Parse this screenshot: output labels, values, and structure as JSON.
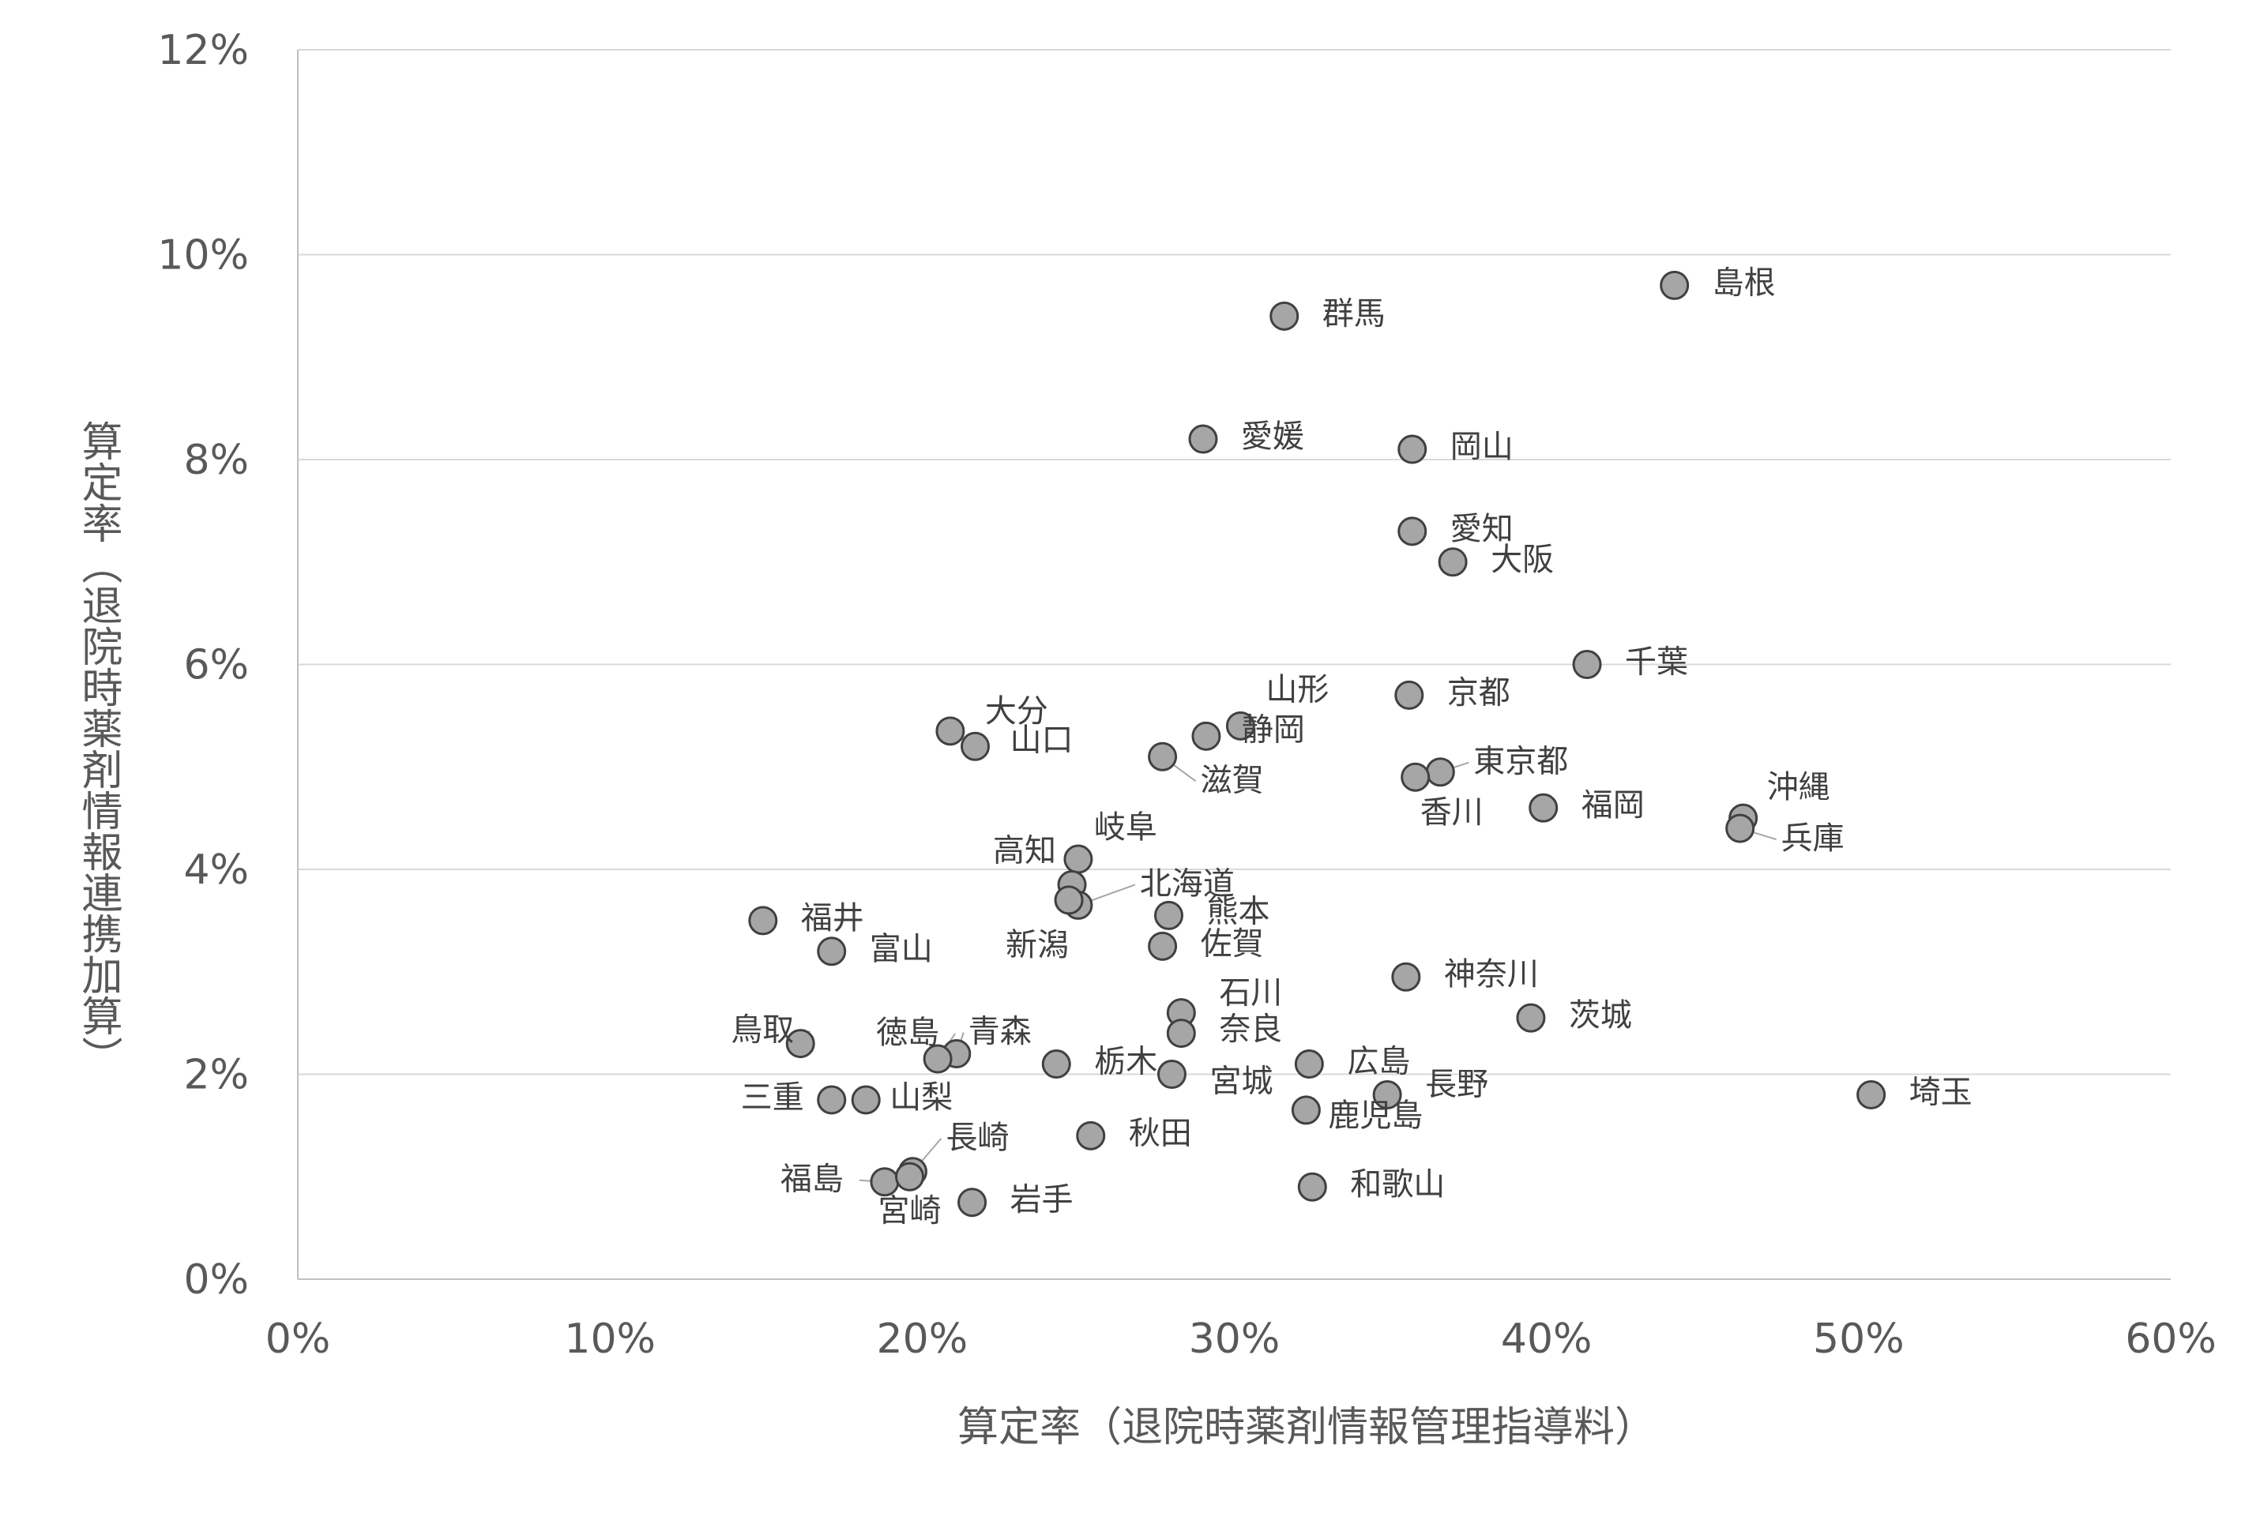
{
  "chart_data": {
    "type": "scatter",
    "xlabel": "算定率（退院時薬剤情報管理指導料）",
    "ylabel": "算定率（退院時薬剤情報連携加算）",
    "xlim": [
      0,
      60
    ],
    "ylim": [
      0,
      12
    ],
    "x_ticks": [
      "0%",
      "10%",
      "20%",
      "30%",
      "40%",
      "50%",
      "60%"
    ],
    "y_ticks": [
      "0%",
      "2%",
      "4%",
      "6%",
      "8%",
      "10%",
      "12%"
    ],
    "grid": "horizontal",
    "marker_color": "#a6a6a6",
    "points": [
      {
        "label": "島根",
        "x": 44.1,
        "y": 9.7
      },
      {
        "label": "群馬",
        "x": 31.6,
        "y": 9.4
      },
      {
        "label": "愛媛",
        "x": 29.0,
        "y": 8.2
      },
      {
        "label": "岡山",
        "x": 35.7,
        "y": 8.1
      },
      {
        "label": "愛知",
        "x": 35.7,
        "y": 7.3
      },
      {
        "label": "大阪",
        "x": 37.0,
        "y": 7.0
      },
      {
        "label": "千葉",
        "x": 41.3,
        "y": 6.0
      },
      {
        "label": "京都",
        "x": 35.6,
        "y": 5.7
      },
      {
        "label": "山形",
        "x": 30.2,
        "y": 5.4
      },
      {
        "label": "静岡",
        "x": 29.1,
        "y": 5.3
      },
      {
        "label": "大分",
        "x": 20.9,
        "y": 5.35
      },
      {
        "label": "山口",
        "x": 21.7,
        "y": 5.2
      },
      {
        "label": "滋賀",
        "x": 27.7,
        "y": 5.1
      },
      {
        "label": "東京都",
        "x": 36.6,
        "y": 4.95
      },
      {
        "label": "香川",
        "x": 35.8,
        "y": 4.9
      },
      {
        "label": "福岡",
        "x": 39.9,
        "y": 4.6
      },
      {
        "label": "沖縄",
        "x": 46.3,
        "y": 4.5
      },
      {
        "label": "兵庫",
        "x": 46.2,
        "y": 4.4
      },
      {
        "label": "岐阜",
        "x": 25.0,
        "y": 4.1
      },
      {
        "label": "高知",
        "x": 24.8,
        "y": 3.85
      },
      {
        "label": "北海道",
        "x": 25.0,
        "y": 3.65
      },
      {
        "label": "新潟",
        "x": 24.7,
        "y": 3.7
      },
      {
        "label": "熊本",
        "x": 27.9,
        "y": 3.55
      },
      {
        "label": "福井",
        "x": 14.9,
        "y": 3.5
      },
      {
        "label": "佐賀",
        "x": 27.7,
        "y": 3.25
      },
      {
        "label": "富山",
        "x": 17.1,
        "y": 3.2
      },
      {
        "label": "神奈川",
        "x": 35.5,
        "y": 2.95
      },
      {
        "label": "石川",
        "x": 28.3,
        "y": 2.6
      },
      {
        "label": "茨城",
        "x": 39.5,
        "y": 2.55
      },
      {
        "label": "奈良",
        "x": 28.3,
        "y": 2.4
      },
      {
        "label": "鳥取",
        "x": 16.1,
        "y": 2.3
      },
      {
        "label": "青森",
        "x": 21.1,
        "y": 2.2
      },
      {
        "label": "徳島",
        "x": 20.5,
        "y": 2.15
      },
      {
        "label": "栃木",
        "x": 24.3,
        "y": 2.1
      },
      {
        "label": "広島",
        "x": 32.4,
        "y": 2.1
      },
      {
        "label": "宮城",
        "x": 28.0,
        "y": 2.0
      },
      {
        "label": "埼玉",
        "x": 50.4,
        "y": 1.8
      },
      {
        "label": "長野",
        "x": 34.9,
        "y": 1.8
      },
      {
        "label": "三重",
        "x": 17.1,
        "y": 1.75
      },
      {
        "label": "山梨",
        "x": 18.2,
        "y": 1.75
      },
      {
        "label": "鹿児島",
        "x": 32.3,
        "y": 1.65
      },
      {
        "label": "秋田",
        "x": 25.4,
        "y": 1.4
      },
      {
        "label": "長崎",
        "x": 19.7,
        "y": 1.05
      },
      {
        "label": "福島",
        "x": 18.8,
        "y": 0.95
      },
      {
        "label": "宮崎",
        "x": 19.6,
        "y": 1.0
      },
      {
        "label": "和歌山",
        "x": 32.5,
        "y": 0.9
      },
      {
        "label": "岩手",
        "x": 21.6,
        "y": 0.75
      }
    ]
  }
}
